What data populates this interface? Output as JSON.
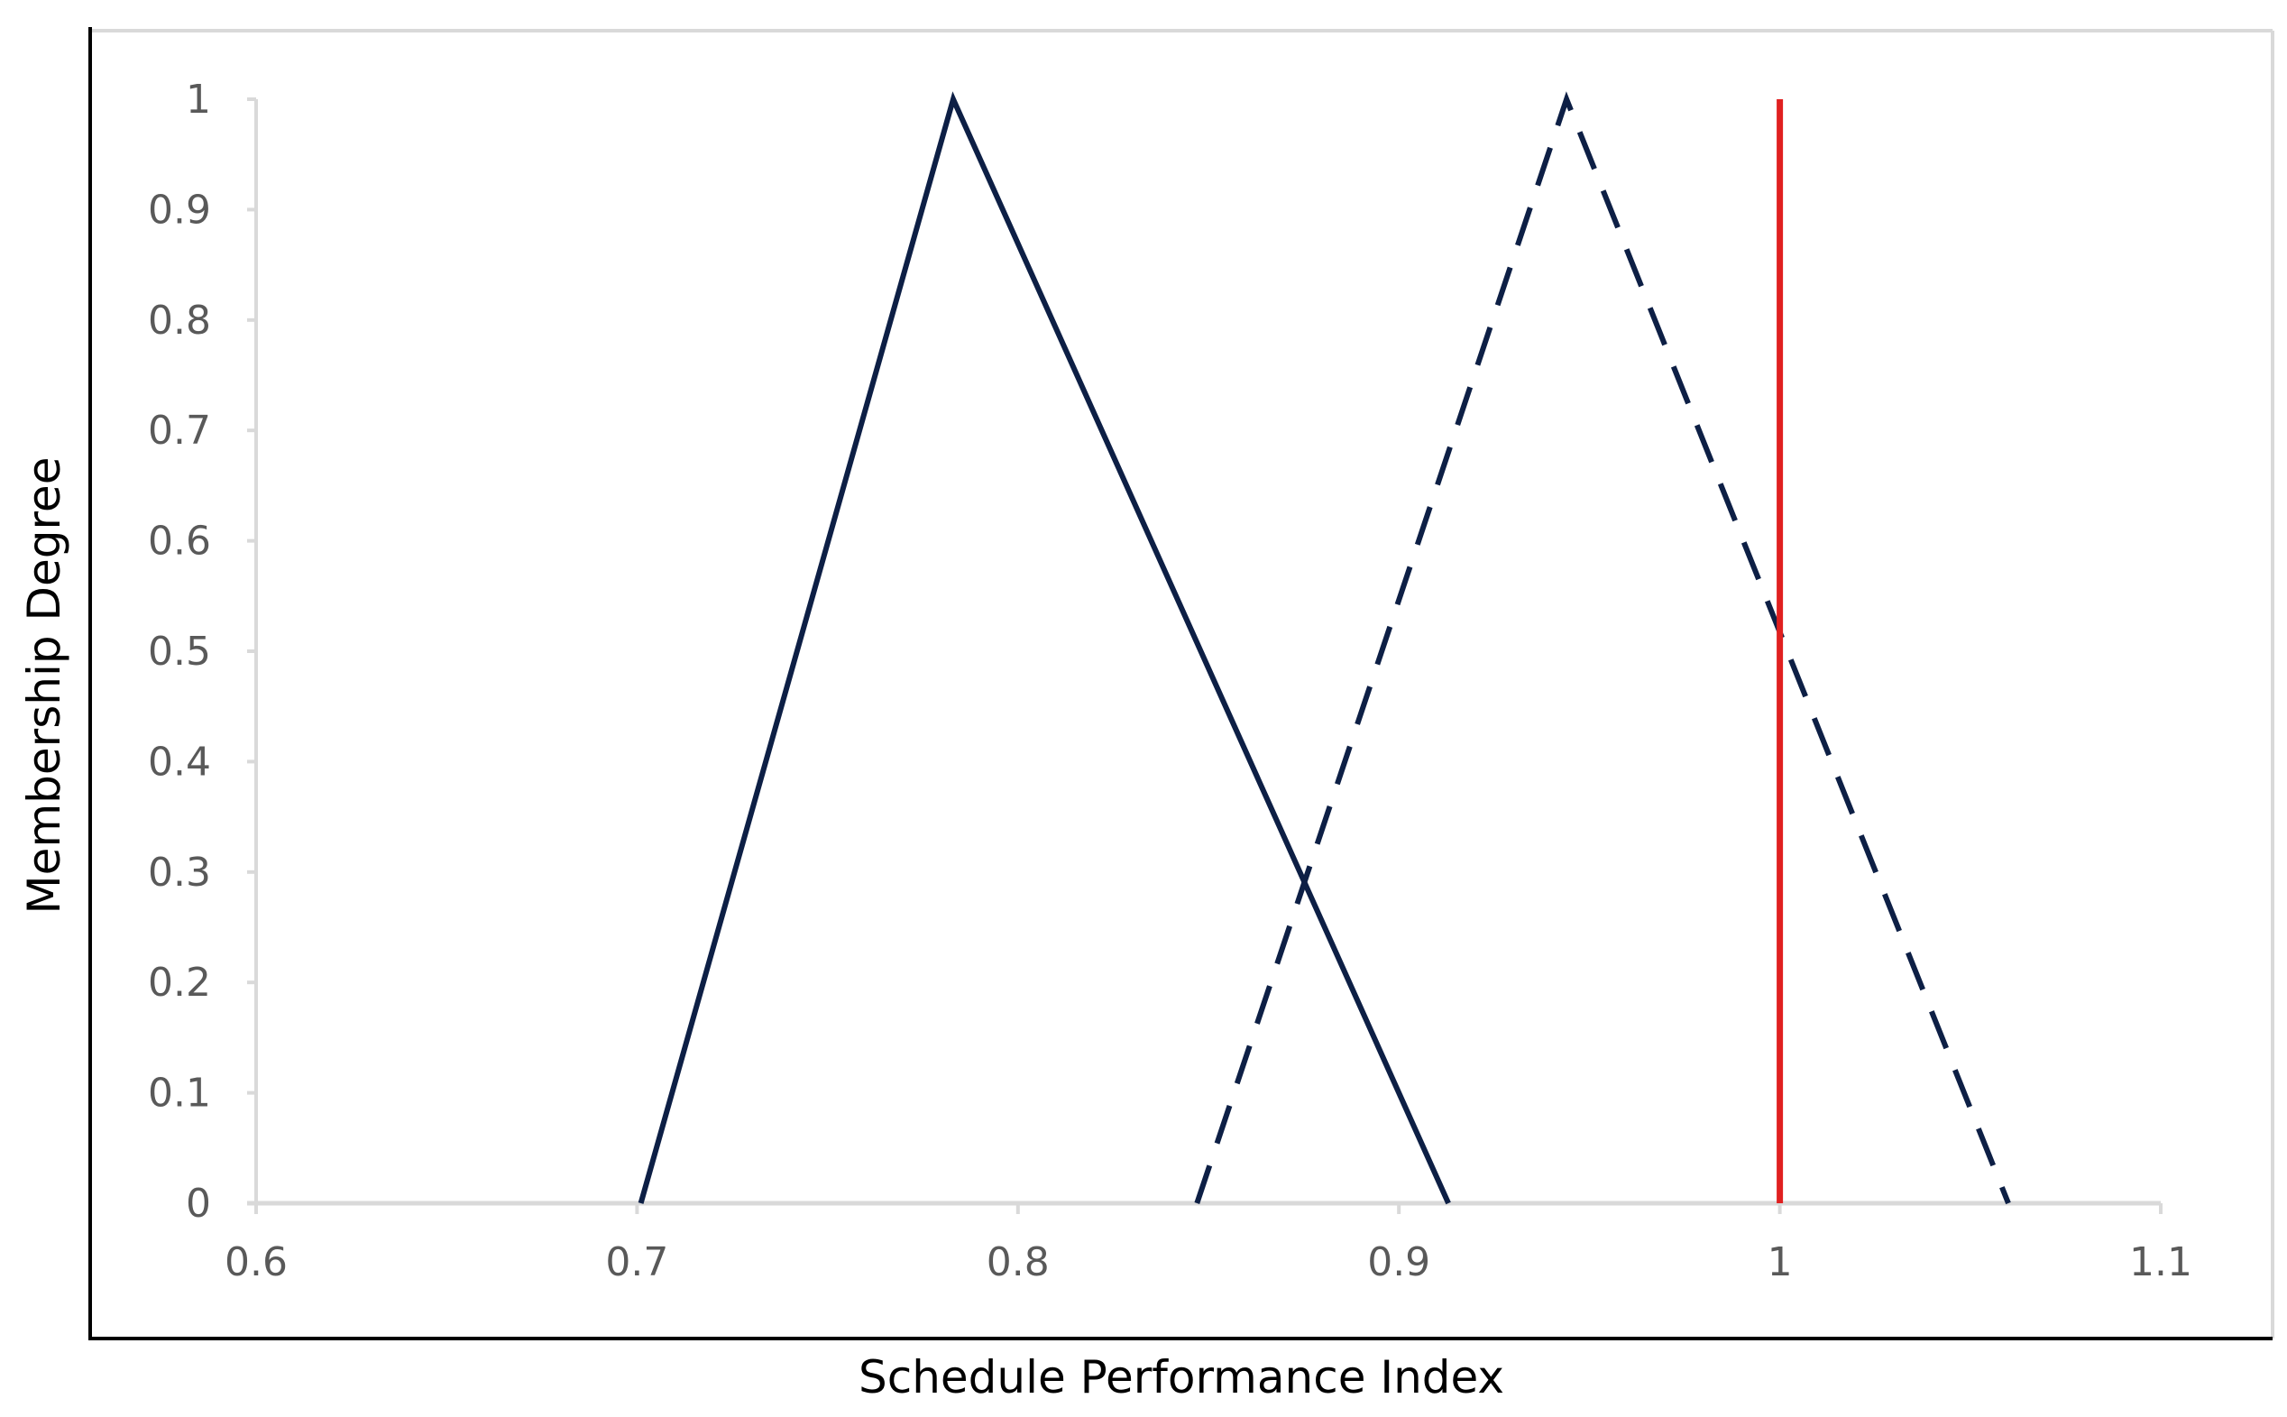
{
  "chart_data": {
    "type": "line",
    "title": "",
    "xlabel": "Schedule Performance Index",
    "ylabel": "Membership Degree",
    "xlim": [
      0.6,
      1.1
    ],
    "ylim": [
      0,
      1
    ],
    "x_ticks": [
      "0.6",
      "0.7",
      "0.8",
      "0.9",
      "1",
      "1.1"
    ],
    "y_ticks": [
      "0",
      "0.1",
      "0.2",
      "0.3",
      "0.4",
      "0.5",
      "0.6",
      "0.7",
      "0.8",
      "0.9",
      "1"
    ],
    "grid": false,
    "legend": "none",
    "series": [
      {
        "style": "solid",
        "color": "#0d1f45",
        "points": [
          {
            "x": 0.701,
            "y": 0
          },
          {
            "x": 0.783,
            "y": 1
          },
          {
            "x": 0.913,
            "y": 0
          }
        ]
      },
      {
        "style": "dashed",
        "color": "#0d1f45",
        "points": [
          {
            "x": 0.847,
            "y": 0
          },
          {
            "x": 0.944,
            "y": 1
          },
          {
            "x": 1.06,
            "y": 0
          }
        ]
      }
    ],
    "reference_lines": [
      {
        "x": 1.0,
        "y_from": 0,
        "y_to": 1,
        "color": "#e02020",
        "style": "solid"
      }
    ],
    "colors": {
      "axis": "#d9d9d9",
      "frame": "#000000",
      "frame_light": "#d9d9d9"
    }
  }
}
